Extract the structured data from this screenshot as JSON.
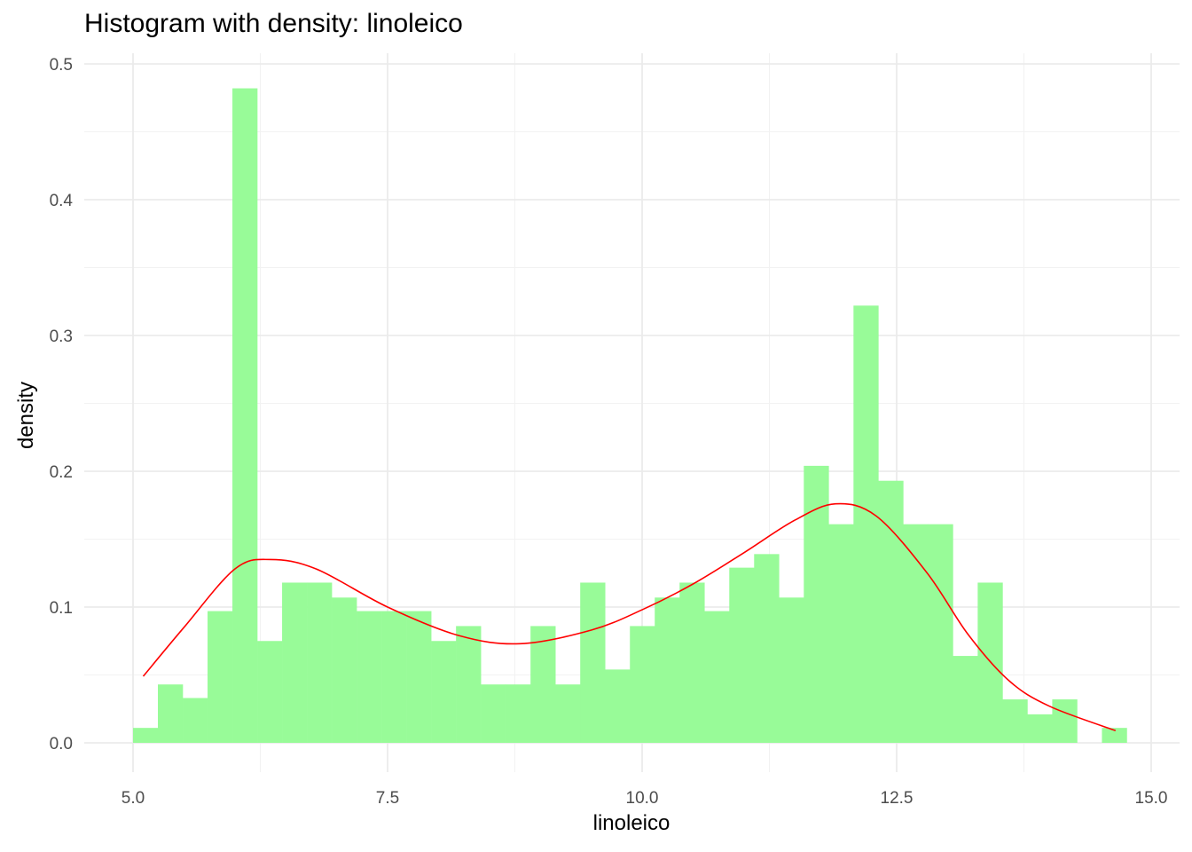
{
  "chart_data": {
    "type": "bar",
    "title": "Histogram with density: linoleico",
    "xlabel": "linoleico",
    "ylabel": "density",
    "xlim": [
      4.8,
      15.2
    ],
    "ylim": [
      0.0,
      0.5
    ],
    "x_ticks": [
      "5.0",
      "7.5",
      "10.0",
      "12.5",
      "15.0"
    ],
    "x_tick_values": [
      5.0,
      7.5,
      10.0,
      12.5,
      15.0
    ],
    "y_ticks": [
      "0.0",
      "0.1",
      "0.2",
      "0.3",
      "0.4",
      "0.5"
    ],
    "y_tick_values": [
      0.0,
      0.1,
      0.2,
      0.3,
      0.4,
      0.5
    ],
    "grid": true,
    "legend": "none",
    "bin_start": 5.0,
    "bin_width": 0.244,
    "bar_color": "#98FB98",
    "curve_color": "#FF0000",
    "histogram_density": [
      0.011,
      0.043,
      0.033,
      0.097,
      0.482,
      0.075,
      0.118,
      0.118,
      0.107,
      0.097,
      0.097,
      0.097,
      0.075,
      0.086,
      0.043,
      0.043,
      0.086,
      0.043,
      0.118,
      0.054,
      0.086,
      0.107,
      0.118,
      0.097,
      0.129,
      0.139,
      0.107,
      0.204,
      0.161,
      0.322,
      0.193,
      0.161,
      0.161,
      0.064,
      0.118,
      0.032,
      0.021,
      0.032,
      0.0,
      0.011
    ],
    "density_curve": {
      "x": [
        5.1,
        5.5,
        6.0,
        6.35,
        6.8,
        7.5,
        8.2,
        8.8,
        9.5,
        10.0,
        10.5,
        11.0,
        11.5,
        11.9,
        12.3,
        12.8,
        13.2,
        13.6,
        14.0,
        14.65
      ],
      "y": [
        0.049,
        0.085,
        0.128,
        0.135,
        0.128,
        0.1,
        0.079,
        0.073,
        0.083,
        0.098,
        0.117,
        0.14,
        0.164,
        0.176,
        0.167,
        0.125,
        0.08,
        0.046,
        0.027,
        0.009
      ]
    }
  }
}
